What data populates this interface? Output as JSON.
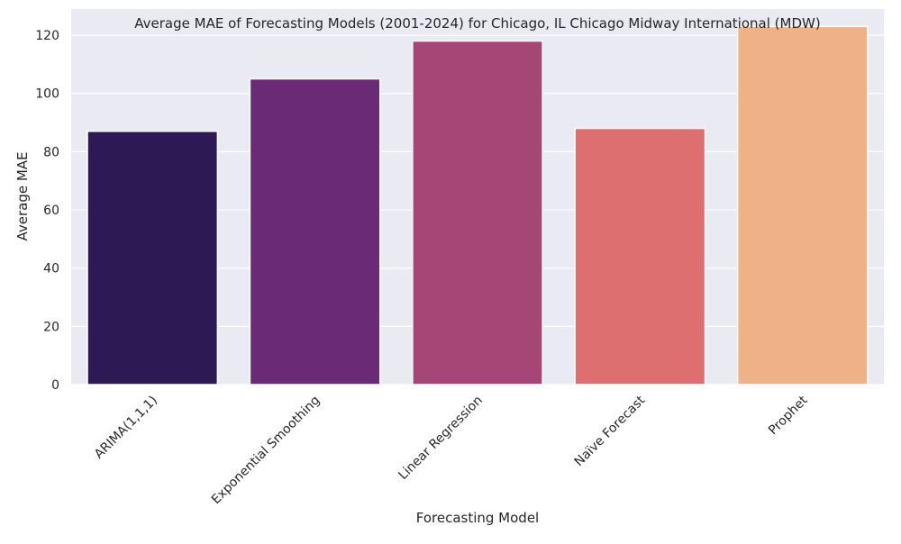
{
  "chart_data": {
    "type": "bar",
    "title": "Average MAE of Forecasting Models (2001-2024) for Chicago, IL Chicago Midway International (MDW)",
    "xlabel": "Forecasting Model",
    "ylabel": "Average MAE",
    "categories": [
      "ARIMA(1,1,1)",
      "Exponential Smoothing",
      "Linear Regression",
      "Naïve Forecast",
      "Prophet"
    ],
    "values": [
      87,
      105,
      118,
      88,
      123
    ],
    "colors": [
      "#2d1a55",
      "#6a2a76",
      "#a64677",
      "#de6f70",
      "#efb286"
    ],
    "ylim": [
      0,
      129
    ],
    "yticks": [
      0,
      20,
      40,
      60,
      80,
      100,
      120
    ],
    "grid": true,
    "background": "#eaeaf2"
  }
}
